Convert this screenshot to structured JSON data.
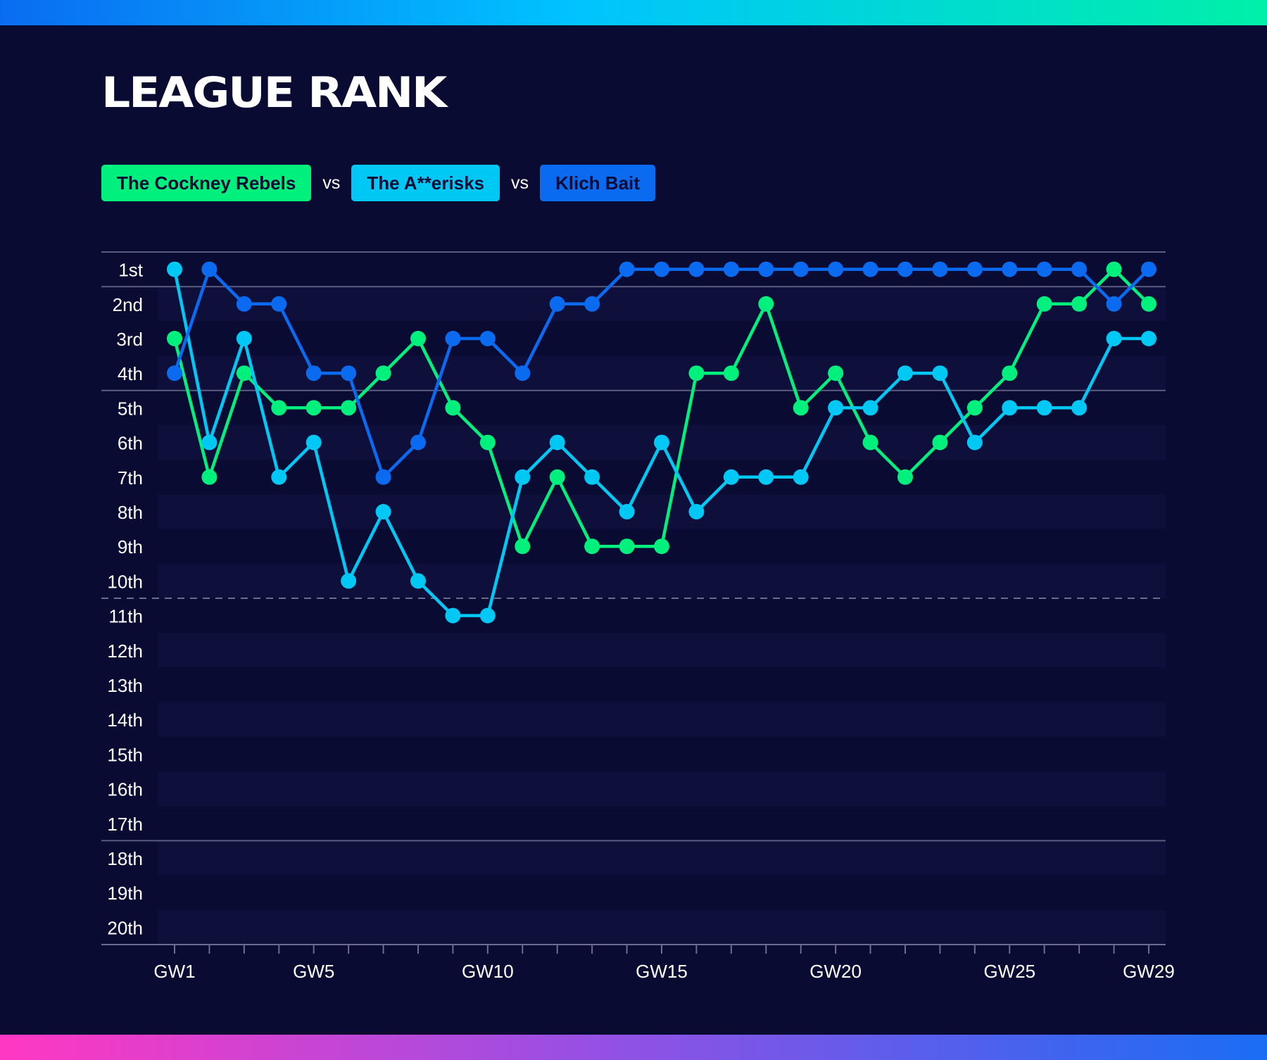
{
  "title": "LEAGUE RANK",
  "legend": {
    "separator": "vs",
    "teams": [
      {
        "label": "The Cockney Rebels",
        "color": "#00f07e"
      },
      {
        "label": "The A**erisks",
        "color": "#00c8f5"
      },
      {
        "label": "Klich Bait",
        "color": "#0b6bf0"
      }
    ]
  },
  "chart_data": {
    "type": "line",
    "title": "LEAGUE RANK",
    "xlabel": "",
    "ylabel": "",
    "x": [
      1,
      2,
      3,
      4,
      5,
      6,
      7,
      8,
      9,
      10,
      11,
      12,
      13,
      14,
      15,
      16,
      17,
      18,
      19,
      20,
      21,
      22,
      23,
      24,
      25,
      26,
      27,
      28,
      29
    ],
    "x_tick_labels": [
      {
        "x": 1,
        "label": "GW1"
      },
      {
        "x": 5,
        "label": "GW5"
      },
      {
        "x": 10,
        "label": "GW10"
      },
      {
        "x": 15,
        "label": "GW15"
      },
      {
        "x": 20,
        "label": "GW20"
      },
      {
        "x": 25,
        "label": "GW25"
      },
      {
        "x": 29,
        "label": "GW29"
      }
    ],
    "y_tick_labels": [
      "1st",
      "2nd",
      "3rd",
      "4th",
      "5th",
      "6th",
      "7th",
      "8th",
      "9th",
      "10th",
      "11th",
      "12th",
      "13th",
      "14th",
      "15th",
      "16th",
      "17th",
      "18th",
      "19th",
      "20th"
    ],
    "ylim": [
      1,
      20
    ],
    "y_inverted": true,
    "reference_lines": [
      {
        "between_ranks": [
          1,
          2
        ],
        "style": "solid"
      },
      {
        "between_ranks": [
          4,
          5
        ],
        "style": "solid"
      },
      {
        "between_ranks": [
          10,
          11
        ],
        "style": "dashed"
      },
      {
        "between_ranks": [
          17,
          18
        ],
        "style": "solid"
      }
    ],
    "series": [
      {
        "name": "The Cockney Rebels",
        "color": "#00f07e",
        "values": [
          3,
          7,
          4,
          5,
          5,
          5,
          4,
          3,
          5,
          6,
          9,
          7,
          9,
          9,
          9,
          4,
          4,
          2,
          5,
          4,
          6,
          7,
          6,
          5,
          4,
          2,
          2,
          1,
          2
        ]
      },
      {
        "name": "The A**erisks",
        "color": "#00c8f5",
        "values": [
          1,
          6,
          3,
          7,
          6,
          10,
          8,
          10,
          11,
          11,
          7,
          6,
          7,
          8,
          6,
          8,
          7,
          7,
          7,
          5,
          5,
          4,
          4,
          6,
          5,
          5,
          5,
          3,
          3
        ]
      },
      {
        "name": "Klich Bait",
        "color": "#0b6bf0",
        "values": [
          4,
          1,
          2,
          2,
          4,
          4,
          7,
          6,
          3,
          3,
          4,
          2,
          2,
          1,
          1,
          1,
          1,
          1,
          1,
          1,
          1,
          1,
          1,
          1,
          1,
          1,
          1,
          2,
          1
        ]
      }
    ]
  }
}
